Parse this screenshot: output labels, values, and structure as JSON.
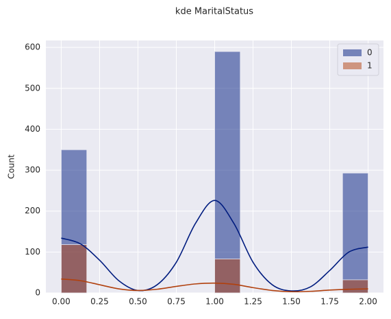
{
  "chart_data": {
    "type": "histogram",
    "title": "kde MaritalStatus",
    "ylabel": "Count",
    "bins": [
      0,
      0.1667,
      0.3333,
      0.5,
      0.6667,
      0.8333,
      1,
      1.1667,
      1.3333,
      1.5,
      1.6667,
      1.8333,
      2
    ],
    "kde_x": [
      0,
      0.125,
      0.25,
      0.375,
      0.5,
      0.625,
      0.75,
      0.875,
      1,
      1.125,
      1.25,
      1.375,
      1.5,
      1.625,
      1.75,
      1.875,
      2
    ],
    "series": [
      {
        "name": "0",
        "color": "#001c7f",
        "values": [
          350,
          0,
          0,
          0,
          0,
          0,
          590,
          0,
          0,
          0,
          0,
          293
        ],
        "kde": [
          134,
          120,
          80,
          30,
          6,
          20,
          75,
          170,
          226,
          170,
          75,
          20,
          5,
          15,
          55,
          100,
          112
        ]
      },
      {
        "name": "1",
        "color": "#b1400d",
        "values": [
          118,
          0,
          0,
          0,
          0,
          0,
          83,
          0,
          0,
          0,
          0,
          32
        ],
        "kde": [
          34,
          30,
          20,
          10,
          6,
          9,
          16,
          22,
          24,
          21,
          13,
          6,
          3,
          4,
          7,
          9,
          10
        ]
      }
    ],
    "xlim": [
      -0.1,
      2.1
    ],
    "ylim": [
      0,
      617
    ],
    "xticks": [
      {
        "value": 0,
        "label": "0.00"
      },
      {
        "value": 0.25,
        "label": "0.25"
      },
      {
        "value": 0.5,
        "label": "0.50"
      },
      {
        "value": 0.75,
        "label": "0.75"
      },
      {
        "value": 1,
        "label": "1.00"
      },
      {
        "value": 1.25,
        "label": "1.25"
      },
      {
        "value": 1.5,
        "label": "1.50"
      },
      {
        "value": 1.75,
        "label": "1.75"
      },
      {
        "value": 2,
        "label": "2.00"
      }
    ],
    "yticks": [
      0,
      100,
      200,
      300,
      400,
      500,
      600
    ],
    "grid": true,
    "legend": "upper right"
  }
}
